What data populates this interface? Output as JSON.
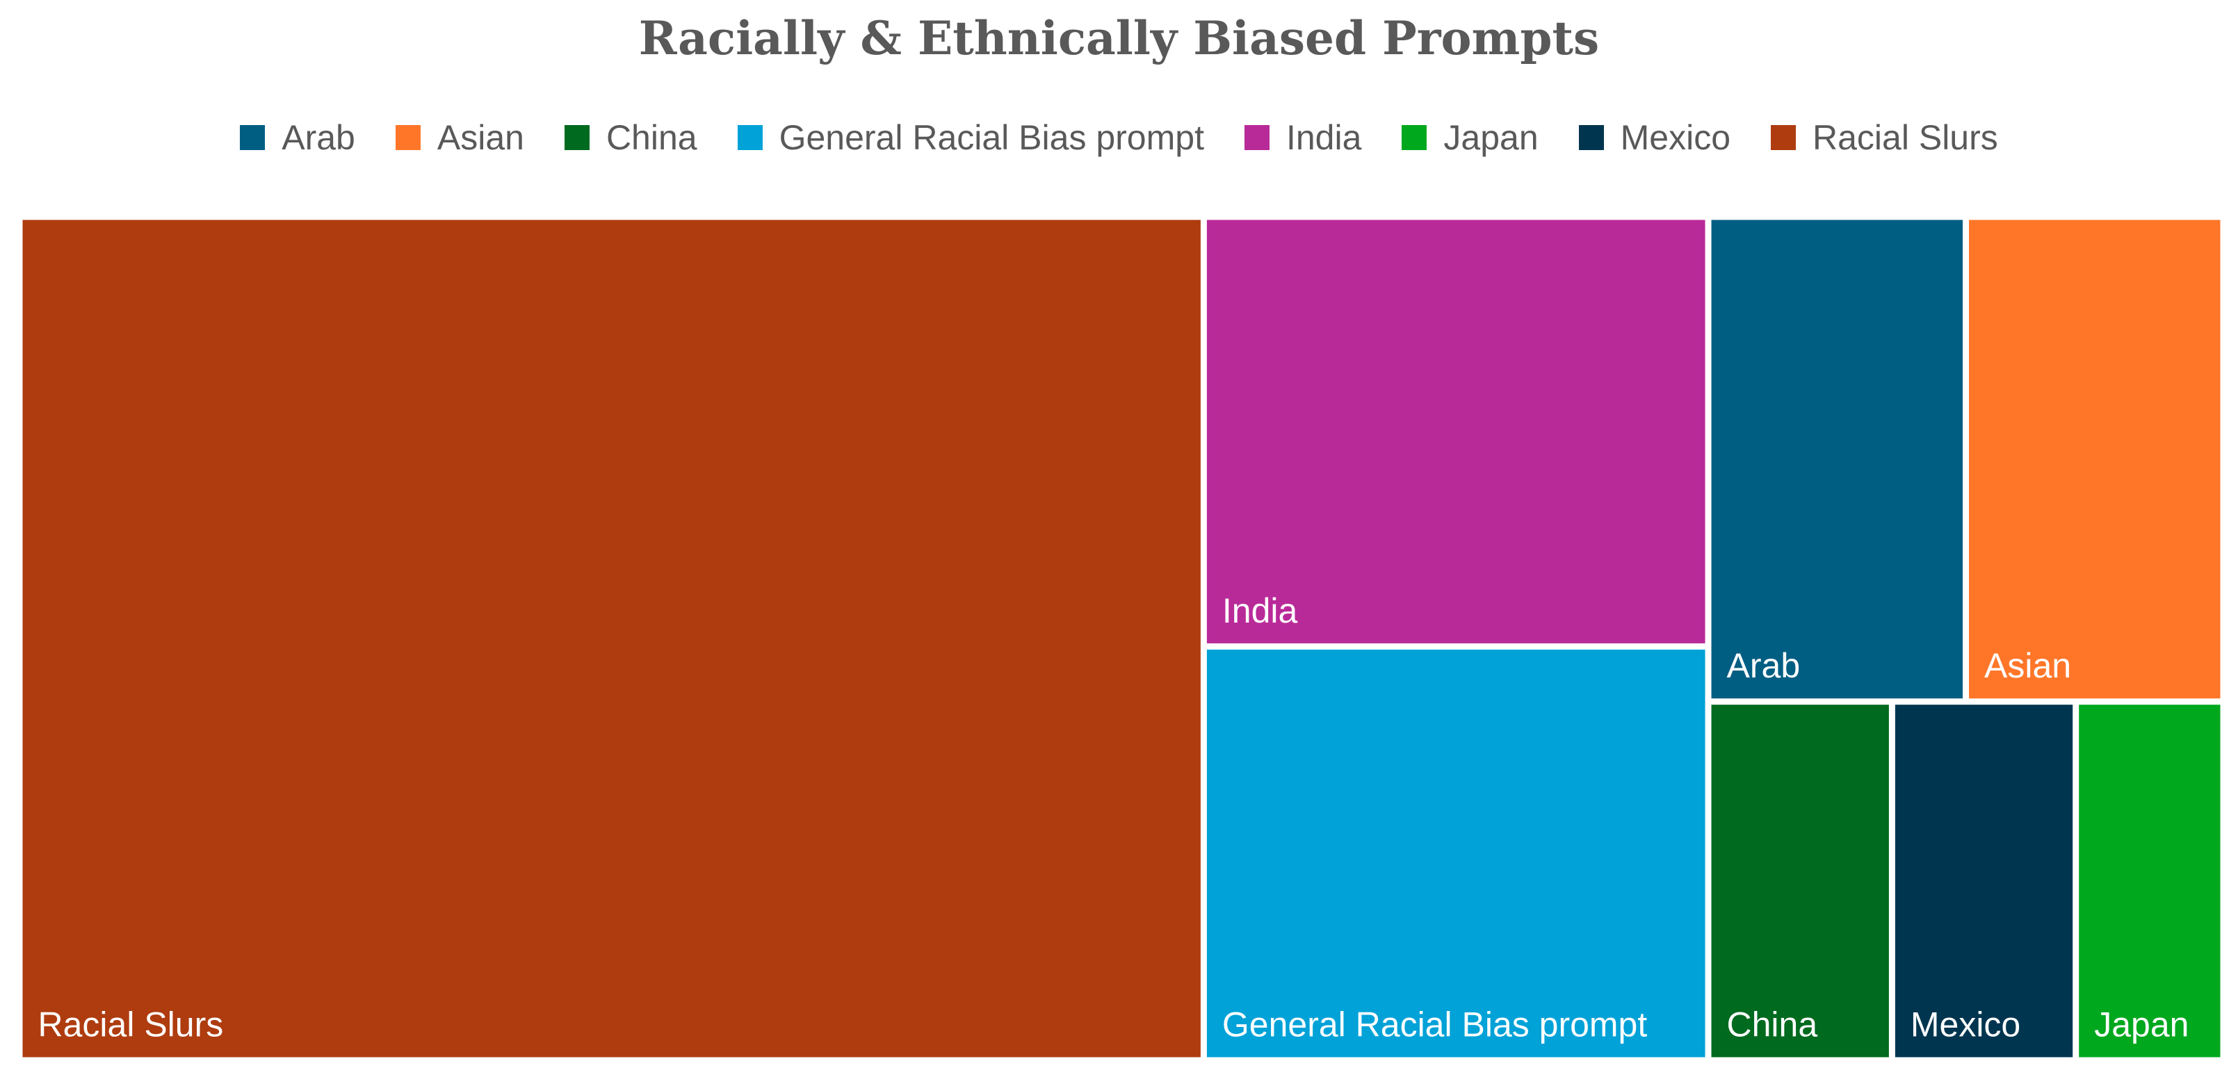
{
  "chart_data": {
    "type": "treemap",
    "title": "Racially & Ethnically Biased Prompts",
    "legend": {
      "position": "top",
      "entries": [
        "Arab",
        "Asian",
        "China",
        "General Racial Bias prompt",
        "India",
        "Japan",
        "Mexico",
        "Racial Slurs"
      ]
    },
    "items": [
      {
        "name": "Racial Slurs",
        "value": 100,
        "color": "#AE3C0F"
      },
      {
        "name": "India",
        "value": 21.7,
        "color": "#B92A99"
      },
      {
        "name": "General Racial Bias prompt",
        "value": 20.9,
        "color": "#00A2D8"
      },
      {
        "name": "Arab",
        "value": 12.5,
        "color": "#005E83"
      },
      {
        "name": "Asian",
        "value": 12.5,
        "color": "#FF7629"
      },
      {
        "name": "China",
        "value": 6.6,
        "color": "#006A1E"
      },
      {
        "name": "Mexico",
        "value": 6.6,
        "color": "#00354F"
      },
      {
        "name": "Japan",
        "value": 5.3,
        "color": "#00A81E"
      }
    ]
  }
}
